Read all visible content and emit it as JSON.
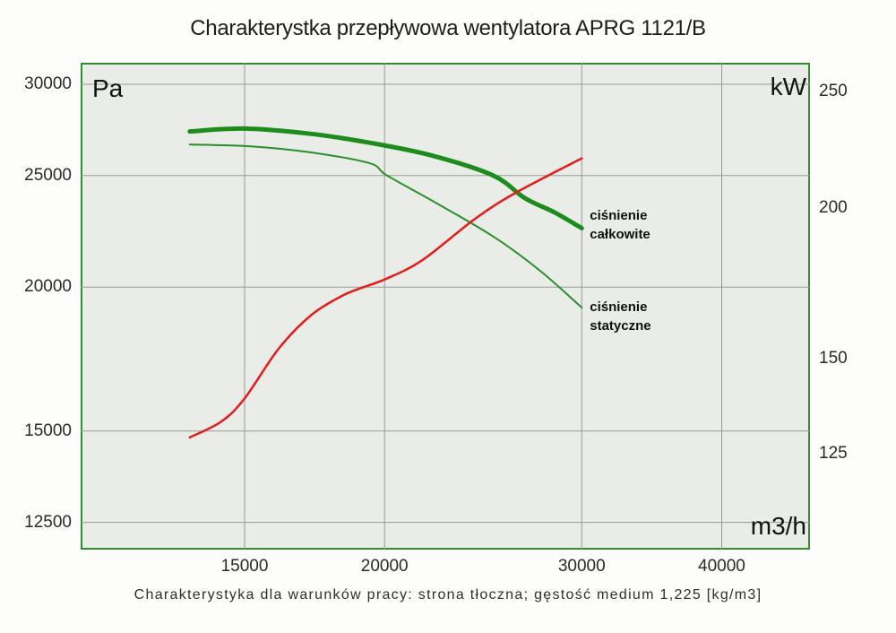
{
  "title": "Charakterystka przepływowa wentylatora APRG 1121/B",
  "caption": "Charakterystyka dla warunków pracy: strona tłoczna; gęstość medium 1,225 [kg/m3]",
  "colors": {
    "plot_background": "#e9ece7",
    "plot_border": "#2f8f2f",
    "gridline": "#979b97",
    "total_pressure_curve": "#1d8c1d",
    "static_pressure_curve": "#2a8f2a",
    "power_curve": "#e41c1c",
    "text": "#1c1c1c"
  },
  "chart_data": {
    "type": "line",
    "title": "Charakterystka przepływowa wentylatora APRG 1121/B",
    "grid": true,
    "x_axis": {
      "label": "m3/h",
      "scale": "log",
      "ticks": [
        15000,
        20000,
        30000,
        40000
      ],
      "range": [
        10700,
        48000
      ]
    },
    "y_axis_left": {
      "label": "Pa",
      "scale": "log",
      "ticks": [
        30000,
        25000,
        20000,
        15000,
        12500
      ],
      "range": [
        11800,
        31300
      ]
    },
    "y_axis_right": {
      "label": "kW",
      "scale": "log",
      "ticks": [
        250,
        200,
        150,
        125
      ],
      "range": [
        104,
        264
      ]
    },
    "series": [
      {
        "id": "total-pressure-curve",
        "name": "ciśnienie całkowite",
        "axis": "left",
        "color": "#1d8c1d",
        "stroke_width": 5,
        "points": [
          [
            13400,
            27300
          ],
          [
            15000,
            27460
          ],
          [
            17200,
            27170
          ],
          [
            19400,
            26690
          ],
          [
            22000,
            26030
          ],
          [
            25000,
            25000
          ],
          [
            26700,
            23890
          ],
          [
            28400,
            23210
          ],
          [
            30000,
            22500
          ]
        ]
      },
      {
        "id": "static-pressure-curve",
        "name": "ciśnienie statyczne",
        "axis": "left",
        "color": "#2a8f2a",
        "stroke_width": 2,
        "points": [
          [
            13400,
            26600
          ],
          [
            15200,
            26500
          ],
          [
            17200,
            26180
          ],
          [
            19400,
            25620
          ],
          [
            20100,
            25000
          ],
          [
            22300,
            23630
          ],
          [
            25100,
            22080
          ],
          [
            27600,
            20630
          ],
          [
            30000,
            19200
          ]
        ]
      },
      {
        "id": "power-curve",
        "name": "",
        "axis": "right",
        "color": "#e41c1c",
        "stroke_width": 2.5,
        "points": [
          [
            13400,
            129
          ],
          [
            14300,
            133
          ],
          [
            15000,
            139
          ],
          [
            16100,
            153
          ],
          [
            17200,
            163
          ],
          [
            18300,
            169
          ],
          [
            19000,
            171.5
          ],
          [
            20000,
            174.5
          ],
          [
            21600,
            181
          ],
          [
            24100,
            196
          ],
          [
            26200,
            206
          ],
          [
            30000,
            220
          ]
        ]
      }
    ],
    "annotations": [
      {
        "lines": [
          "ciśnienie",
          "całkowite"
        ],
        "x": 30500,
        "y": 23500,
        "axis": "left"
      },
      {
        "lines": [
          "ciśnienie",
          "statyczne"
        ],
        "x": 30500,
        "y": 19600,
        "axis": "left"
      }
    ],
    "legend_position": "none"
  }
}
